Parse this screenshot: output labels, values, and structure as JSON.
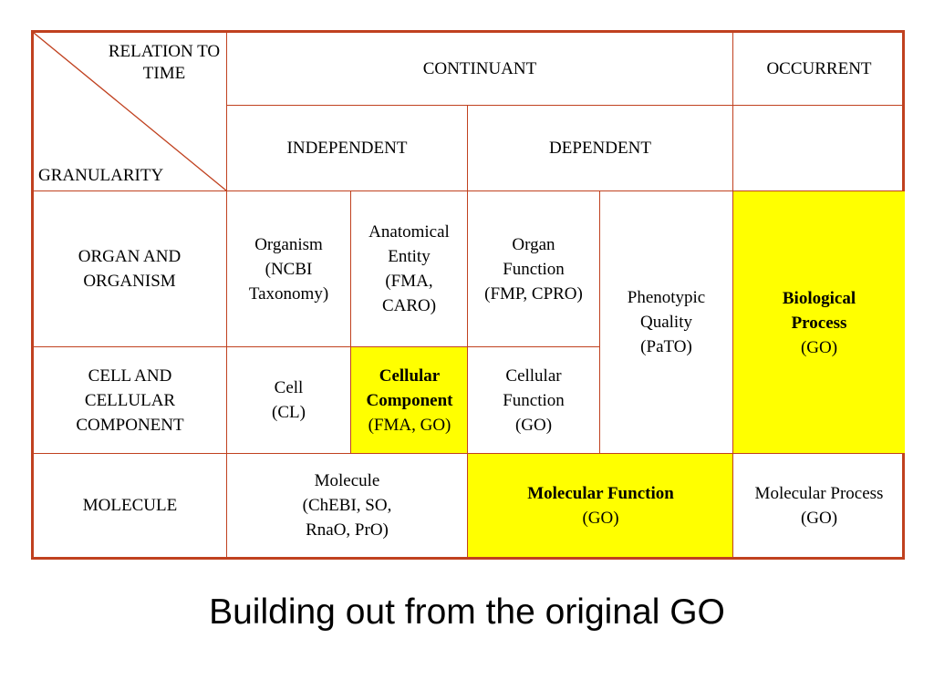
{
  "corner": {
    "top": "RELATION TO TIME",
    "bottom": "GRANULARITY"
  },
  "header": {
    "continuant": "CONTINUANT",
    "occurrent": "OCCURRENT",
    "independent": "INDEPENDENT",
    "dependent": "DEPENDENT"
  },
  "rows": {
    "organ": "ORGAN AND ORGANISM",
    "cell": "CELL AND CELLULAR COMPONENT",
    "molecule": "MOLECULE"
  },
  "cells": {
    "organism": {
      "line1": "Organism",
      "line2": "(NCBI",
      "line3": "Taxonomy)"
    },
    "anatomical": {
      "line1": "Anatomical",
      "line2": "Entity",
      "line3": "(FMA,",
      "line4": "CARO)"
    },
    "organ_function": {
      "line1": "Organ",
      "line2": "Function",
      "line3": "(FMP, CPRO)"
    },
    "phenotypic": {
      "line1": "Phenotypic",
      "line2": "Quality",
      "line3": "(PaTO)"
    },
    "bio_process": {
      "line1": "Biological",
      "line2": "Process",
      "line3": "(GO)"
    },
    "cell": {
      "line1": "Cell",
      "line2": "(CL)"
    },
    "cellular_component": {
      "line1": "Cellular",
      "line2": "Component",
      "line3": "(FMA, GO)"
    },
    "cellular_function": {
      "line1": "Cellular",
      "line2": "Function",
      "line3": "(GO)"
    },
    "molecule": {
      "line1": "Molecule",
      "line2": "(ChEBI, SO,",
      "line3": "RnaO, PrO)"
    },
    "molecular_function": {
      "line1": "Molecular Function",
      "line2": "(GO)"
    },
    "molecular_process": {
      "line1": "Molecular Process",
      "line2": "(GO)"
    }
  },
  "caption": "Building out from the original GO",
  "colors": {
    "border": "#c0411f",
    "highlight": "#ffff00"
  }
}
